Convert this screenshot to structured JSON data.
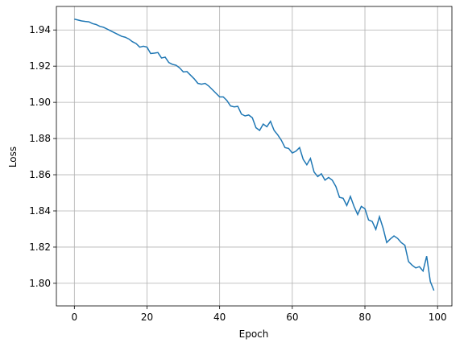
{
  "chart_data": {
    "type": "line",
    "xlabel": "Epoch",
    "ylabel": "Loss",
    "x": [
      0,
      1,
      2,
      3,
      4,
      5,
      6,
      7,
      8,
      9,
      10,
      11,
      12,
      13,
      14,
      15,
      16,
      17,
      18,
      19,
      20,
      21,
      22,
      23,
      24,
      25,
      26,
      27,
      28,
      29,
      30,
      31,
      32,
      33,
      34,
      35,
      36,
      37,
      38,
      39,
      40,
      41,
      42,
      43,
      44,
      45,
      46,
      47,
      48,
      49,
      50,
      51,
      52,
      53,
      54,
      55,
      56,
      57,
      58,
      59,
      60,
      61,
      62,
      63,
      64,
      65,
      66,
      67,
      68,
      69,
      70,
      71,
      72,
      73,
      74,
      75,
      76,
      77,
      78,
      79,
      80,
      81,
      82,
      83,
      84,
      85,
      86,
      87,
      88,
      89,
      90,
      91,
      92,
      93,
      94,
      95,
      96,
      97,
      98,
      99
    ],
    "series": [
      {
        "color": "#1f77b4",
        "values": [
          1.946,
          1.9455,
          1.945,
          1.9447,
          1.9445,
          1.9435,
          1.943,
          1.942,
          1.9415,
          1.9405,
          1.9395,
          1.9385,
          1.9375,
          1.9365,
          1.936,
          1.935,
          1.9335,
          1.9325,
          1.9305,
          1.931,
          1.9305,
          1.927,
          1.9272,
          1.9275,
          1.9245,
          1.925,
          1.922,
          1.921,
          1.9205,
          1.919,
          1.9168,
          1.917,
          1.915,
          1.913,
          1.9105,
          1.91,
          1.9105,
          1.909,
          1.907,
          1.905,
          1.903,
          1.903,
          1.901,
          1.898,
          1.8975,
          1.8978,
          1.8935,
          1.8925,
          1.893,
          1.8915,
          1.886,
          1.8845,
          1.888,
          1.8865,
          1.8895,
          1.8845,
          1.882,
          1.879,
          1.875,
          1.8745,
          1.872,
          1.873,
          1.875,
          1.8685,
          1.8655,
          1.869,
          1.8615,
          1.859,
          1.8605,
          1.857,
          1.8585,
          1.857,
          1.8535,
          1.8475,
          1.847,
          1.843,
          1.848,
          1.8425,
          1.838,
          1.8425,
          1.8412,
          1.835,
          1.8342,
          1.8298,
          1.8368,
          1.8305,
          1.8225,
          1.8245,
          1.8262,
          1.8248,
          1.8225,
          1.821,
          1.812,
          1.81,
          1.8085,
          1.8092,
          1.8068,
          1.815,
          1.801,
          1.796
        ]
      }
    ],
    "xlim": [
      -4.95,
      103.95
    ],
    "xticks": [
      0,
      20,
      40,
      60,
      80,
      100
    ],
    "ylim": [
      1.7875,
      1.953
    ],
    "yticks": [
      {
        "value": 1.8,
        "label": "1.80"
      },
      1.82,
      1.84,
      1.86,
      1.88,
      {
        "value": 1.9,
        "label": "1.90"
      },
      1.92,
      1.94
    ],
    "grid": true
  }
}
